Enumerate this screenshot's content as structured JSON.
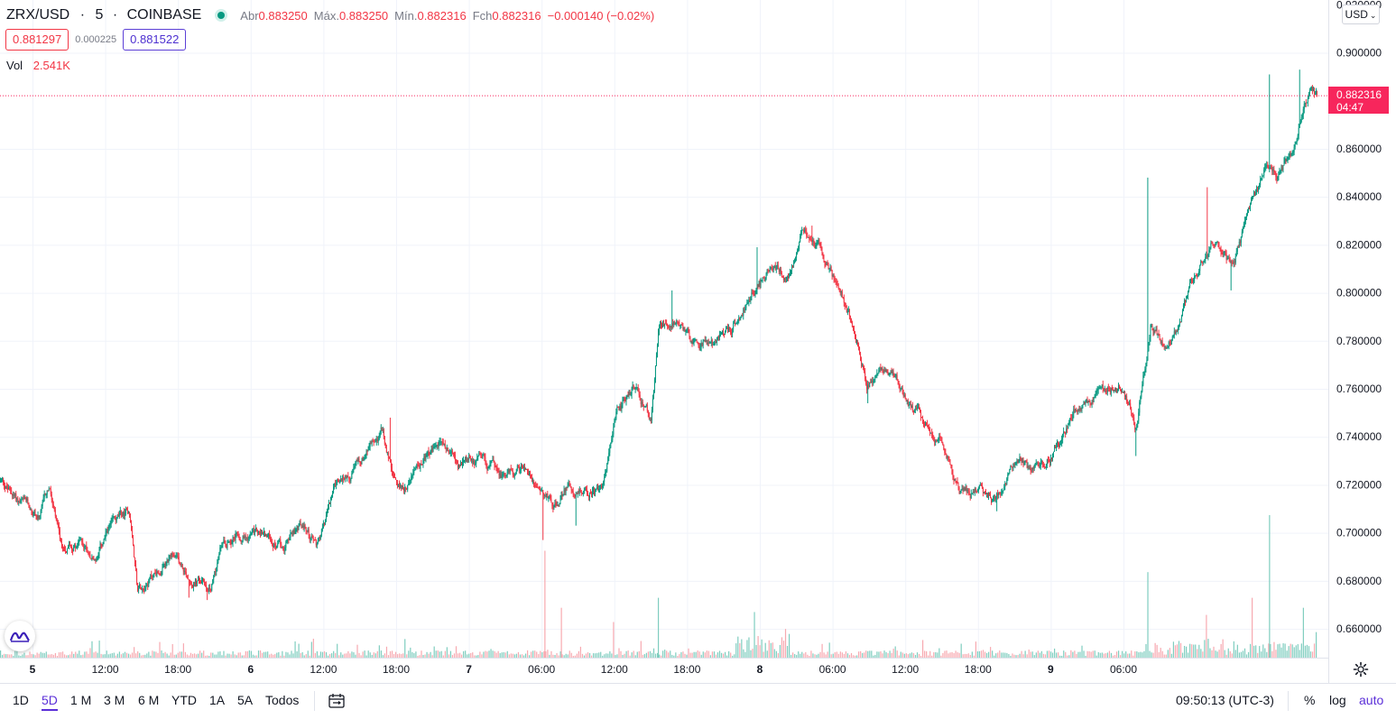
{
  "header": {
    "symbol": "ZRX/USD",
    "interval": "5",
    "exchange": "COINBASE",
    "open_label": "Abr",
    "open_value": "0.883250",
    "high_label": "Máx.",
    "high_value": "0.883250",
    "low_label": "Mín.",
    "low_value": "0.882316",
    "close_label": "Fch",
    "close_value": "0.882316",
    "change": "−0.000140 (−0.02%)",
    "bid": "0.881297",
    "spread": "0.000225",
    "ask": "0.881522",
    "vol_label": "Vol",
    "vol_value": "2.541K"
  },
  "currency_button": "USD",
  "price_tag": {
    "price": "0.882316",
    "countdown": "04:47"
  },
  "footer": {
    "ranges": [
      "1D",
      "5D",
      "1 M",
      "3 M",
      "6 M",
      "YTD",
      "1A",
      "5A",
      "Todos"
    ],
    "active_range": "5D",
    "clock": "09:50:13 (UTC-3)",
    "percent_label": "%",
    "log_label": "log",
    "auto_label": "auto"
  },
  "colors": {
    "up": "#089981",
    "down": "#f23645",
    "accent": "#5b2fd8",
    "last_price": "#f7265c"
  },
  "chart_data": {
    "type": "candlestick",
    "title": "ZRX/USD · 5 · COINBASE",
    "ylim": [
      0.648,
      0.922
    ],
    "y_ticks": [
      "0.920000",
      "0.900000",
      "0.860000",
      "0.840000",
      "0.820000",
      "0.800000",
      "0.780000",
      "0.760000",
      "0.740000",
      "0.720000",
      "0.700000",
      "0.680000",
      "0.660000"
    ],
    "x_ticks": [
      "5",
      "12:00",
      "18:00",
      "6",
      "12:00",
      "18:00",
      "7",
      "06:00",
      "12:00",
      "18:00",
      "8",
      "06:00",
      "12:00",
      "18:00",
      "9",
      "06:00"
    ],
    "x_tick_bold": [
      true,
      false,
      false,
      true,
      false,
      false,
      true,
      false,
      false,
      false,
      true,
      false,
      false,
      false,
      true,
      false
    ],
    "last_price": 0.882316,
    "trend_points": [
      [
        0,
        0.722
      ],
      [
        0.012,
        0.714
      ],
      [
        0.03,
        0.706
      ],
      [
        0.037,
        0.718
      ],
      [
        0.046,
        0.692
      ],
      [
        0.06,
        0.697
      ],
      [
        0.074,
        0.69
      ],
      [
        0.082,
        0.701
      ],
      [
        0.098,
        0.708
      ],
      [
        0.104,
        0.678
      ],
      [
        0.116,
        0.683
      ],
      [
        0.13,
        0.688
      ],
      [
        0.142,
        0.682
      ],
      [
        0.16,
        0.677
      ],
      [
        0.168,
        0.694
      ],
      [
        0.18,
        0.702
      ],
      [
        0.2,
        0.699
      ],
      [
        0.215,
        0.694
      ],
      [
        0.228,
        0.704
      ],
      [
        0.24,
        0.694
      ],
      [
        0.254,
        0.718
      ],
      [
        0.27,
        0.727
      ],
      [
        0.29,
        0.742
      ],
      [
        0.302,
        0.714
      ],
      [
        0.316,
        0.727
      ],
      [
        0.335,
        0.737
      ],
      [
        0.35,
        0.727
      ],
      [
        0.365,
        0.732
      ],
      [
        0.38,
        0.724
      ],
      [
        0.398,
        0.727
      ],
      [
        0.414,
        0.718
      ],
      [
        0.424,
        0.712
      ],
      [
        0.432,
        0.72
      ],
      [
        0.446,
        0.716
      ],
      [
        0.458,
        0.722
      ],
      [
        0.468,
        0.747
      ],
      [
        0.48,
        0.76
      ],
      [
        0.494,
        0.747
      ],
      [
        0.5,
        0.784
      ],
      [
        0.514,
        0.79
      ],
      [
        0.524,
        0.782
      ],
      [
        0.542,
        0.778
      ],
      [
        0.558,
        0.788
      ],
      [
        0.572,
        0.802
      ],
      [
        0.586,
        0.811
      ],
      [
        0.598,
        0.808
      ],
      [
        0.61,
        0.826
      ],
      [
        0.624,
        0.818
      ],
      [
        0.634,
        0.804
      ],
      [
        0.646,
        0.79
      ],
      [
        0.658,
        0.762
      ],
      [
        0.672,
        0.77
      ],
      [
        0.686,
        0.758
      ],
      [
        0.702,
        0.747
      ],
      [
        0.716,
        0.737
      ],
      [
        0.728,
        0.718
      ],
      [
        0.744,
        0.717
      ],
      [
        0.756,
        0.713
      ],
      [
        0.77,
        0.73
      ],
      [
        0.782,
        0.725
      ],
      [
        0.794,
        0.727
      ],
      [
        0.808,
        0.742
      ],
      [
        0.82,
        0.755
      ],
      [
        0.836,
        0.758
      ],
      [
        0.852,
        0.762
      ],
      [
        0.862,
        0.743
      ],
      [
        0.874,
        0.787
      ],
      [
        0.884,
        0.778
      ],
      [
        0.896,
        0.787
      ],
      [
        0.908,
        0.81
      ],
      [
        0.922,
        0.823
      ],
      [
        0.934,
        0.81
      ],
      [
        0.948,
        0.83
      ],
      [
        0.96,
        0.852
      ],
      [
        0.97,
        0.848
      ],
      [
        0.984,
        0.862
      ],
      [
        0.993,
        0.883
      ]
    ],
    "spikes": [
      {
        "t": 0.143,
        "low": 0.673
      },
      {
        "t": 0.157,
        "low": 0.672
      },
      {
        "t": 0.412,
        "low": 0.697
      },
      {
        "t": 0.437,
        "low": 0.703
      },
      {
        "t": 0.658,
        "low": 0.754
      },
      {
        "t": 0.756,
        "low": 0.709
      },
      {
        "t": 0.862,
        "low": 0.732
      },
      {
        "t": 0.871,
        "high": 0.848
      },
      {
        "t": 0.916,
        "high": 0.844
      },
      {
        "t": 0.934,
        "low": 0.801
      },
      {
        "t": 0.963,
        "high": 0.891
      },
      {
        "t": 0.986,
        "high": 0.893
      },
      {
        "t": 0.51,
        "high": 0.801
      },
      {
        "t": 0.574,
        "high": 0.819
      },
      {
        "t": 0.616,
        "high": 0.828
      },
      {
        "t": 0.296,
        "high": 0.748
      }
    ],
    "volume_spikes": [
      {
        "t": 0.413,
        "v": 0.75,
        "up": false
      },
      {
        "t": 0.426,
        "v": 0.35,
        "up": false
      },
      {
        "t": 0.465,
        "v": 0.25,
        "up": false
      },
      {
        "t": 0.499,
        "v": 0.42,
        "up": true
      },
      {
        "t": 0.572,
        "v": 0.32,
        "up": true
      },
      {
        "t": 0.871,
        "v": 0.6,
        "up": true
      },
      {
        "t": 0.915,
        "v": 0.3,
        "up": false
      },
      {
        "t": 0.963,
        "v": 1.0,
        "up": true
      },
      {
        "t": 0.95,
        "v": 0.42,
        "up": false
      },
      {
        "t": 0.989,
        "v": 0.35,
        "up": true
      }
    ]
  }
}
